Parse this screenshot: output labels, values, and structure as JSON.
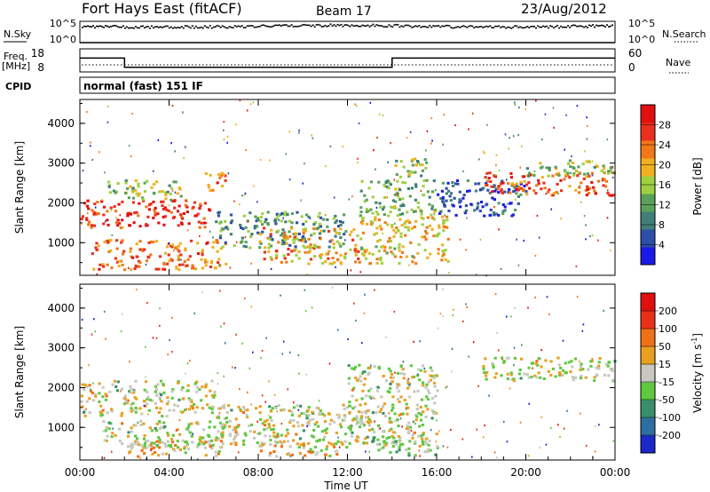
{
  "header": {
    "station": "Fort Hays East (fitACF)",
    "beam": "Beam 17",
    "date": "23/Aug/2012"
  },
  "noise_panel": {
    "left_label": "N.Sky",
    "left_ticks": [
      "10^5",
      "10^0"
    ],
    "right_ticks": [
      "10^5",
      "10^0"
    ],
    "right_label": "N.Search"
  },
  "freq_panel": {
    "left_label_top": "Freq.",
    "left_label_unit": "[MHz]",
    "left_ticks": [
      "18",
      "8"
    ],
    "right_ticks": [
      "60",
      "0"
    ],
    "right_label": "Nave",
    "freq_steps": [
      {
        "t": 0.0,
        "v": 14
      },
      {
        "t": 2.0,
        "v": 14
      },
      {
        "t": 2.0,
        "v": 10
      },
      {
        "t": 14.0,
        "v": 10
      },
      {
        "t": 14.0,
        "v": 14
      },
      {
        "t": 24.0,
        "v": 14
      }
    ]
  },
  "cpid": {
    "label": "CPID",
    "value": "normal (fast) 151 IF"
  },
  "x_axis": {
    "ticks": [
      "00:00",
      "04:00",
      "08:00",
      "12:00",
      "16:00",
      "20:00",
      "00:00"
    ],
    "label": "Time UT"
  },
  "y_axis": {
    "label": "Slant Range [km]",
    "ticks": [
      "1000",
      "2000",
      "3000",
      "4000"
    ]
  },
  "power_colorbar": {
    "label": "Power [dB]",
    "ticks": [
      "4",
      "8",
      "12",
      "16",
      "20",
      "24",
      "28"
    ],
    "colors": [
      "#1a1ae6",
      "#2e4fa8",
      "#3f7f78",
      "#5aa05a",
      "#9ed040",
      "#f0b020",
      "#f07818",
      "#e83020",
      "#e01010"
    ]
  },
  "velocity_colorbar": {
    "label": "Velocity [m s",
    "label_sup": "-1",
    "label_end": "]",
    "ticks": [
      "200",
      "100",
      "50",
      "15",
      "-15",
      "-50",
      "-100",
      "-200"
    ],
    "colors": [
      "#1a28c8",
      "#2f6ea0",
      "#3a8f6a",
      "#5ec840",
      "#c8c8c0",
      "#e8a020",
      "#f07018",
      "#e83018",
      "#e01010"
    ]
  },
  "chart_data": [
    {
      "type": "line",
      "title": "N.Sky / N.Search",
      "xlim": [
        0,
        24
      ],
      "yscale": "log",
      "ylim": [
        1,
        100000
      ],
      "series": [
        {
          "name": "N.Sky",
          "approx_value": 10000
        },
        {
          "name": "N.Search"
        }
      ]
    },
    {
      "type": "line",
      "title": "Freq. [MHz] / Nave",
      "xlim": [
        0,
        24
      ],
      "ylim": [
        8,
        18
      ],
      "series": [
        {
          "name": "Freq.",
          "x": [
            0,
            2,
            2,
            14,
            14,
            24
          ],
          "y": [
            14,
            14,
            10,
            10,
            14,
            14
          ]
        },
        {
          "name": "Nave",
          "approx_value": 10
        }
      ]
    },
    {
      "type": "heatmap",
      "title": "Power [dB]",
      "xlabel": "Time UT",
      "ylabel": "Slant Range [km]",
      "xlim": [
        0,
        24
      ],
      "ylim": [
        180,
        4600
      ],
      "zlim": [
        0,
        30
      ],
      "regions": [
        {
          "t0": 0.0,
          "t1": 5.8,
          "r0": 1400,
          "r1": 2100,
          "z": 26
        },
        {
          "t0": 1.0,
          "t1": 4.5,
          "r0": 2100,
          "r1": 2600,
          "z": 14
        },
        {
          "t0": 0.5,
          "t1": 6.5,
          "r0": 350,
          "r1": 1100,
          "z": 22
        },
        {
          "t0": 5.5,
          "t1": 6.5,
          "r0": 2300,
          "r1": 2800,
          "z": 22
        },
        {
          "t0": 6.0,
          "t1": 12.0,
          "r0": 900,
          "r1": 1800,
          "z": 10
        },
        {
          "t0": 8.0,
          "t1": 12.5,
          "r0": 500,
          "r1": 1400,
          "z": 20
        },
        {
          "t0": 12.5,
          "t1": 16.5,
          "r0": 500,
          "r1": 1700,
          "z": 18
        },
        {
          "t0": 12.5,
          "t1": 16.0,
          "r0": 1700,
          "r1": 2600,
          "z": 12
        },
        {
          "t0": 14.0,
          "t1": 15.5,
          "r0": 2600,
          "r1": 3200,
          "z": 14
        },
        {
          "t0": 16.0,
          "t1": 20.0,
          "r0": 1700,
          "r1": 2600,
          "z": 6
        },
        {
          "t0": 18.0,
          "t1": 24.0,
          "r0": 2200,
          "r1": 2800,
          "z": 24
        },
        {
          "t0": 20.0,
          "t1": 24.0,
          "r0": 2700,
          "r1": 3100,
          "z": 14
        }
      ]
    },
    {
      "type": "heatmap",
      "title": "Velocity [m s-1]",
      "xlabel": "Time UT",
      "ylabel": "Slant Range [km]",
      "xlim": [
        0,
        24
      ],
      "ylim": [
        180,
        4600
      ],
      "zlim": [
        -200,
        200
      ],
      "regions": [
        {
          "t0": 0.0,
          "t1": 6.0,
          "r0": 1300,
          "r1": 2200,
          "z": 0
        },
        {
          "t0": 1.0,
          "t1": 7.0,
          "r0": 500,
          "r1": 1200,
          "z": 0
        },
        {
          "t0": 2.0,
          "t1": 6.5,
          "r0": 300,
          "r1": 700,
          "z": 30
        },
        {
          "t0": 6.0,
          "t1": 13.0,
          "r0": 600,
          "r1": 1600,
          "z": 0
        },
        {
          "t0": 8.0,
          "t1": 12.0,
          "r0": 300,
          "r1": 700,
          "z": 30
        },
        {
          "t0": 12.0,
          "t1": 16.0,
          "r0": 600,
          "r1": 2600,
          "z": 0
        },
        {
          "t0": 13.0,
          "t1": 16.0,
          "r0": 300,
          "r1": 800,
          "z": -30
        },
        {
          "t0": 18.0,
          "t1": 24.0,
          "r0": 2200,
          "r1": 2800,
          "z": 0
        }
      ]
    }
  ]
}
